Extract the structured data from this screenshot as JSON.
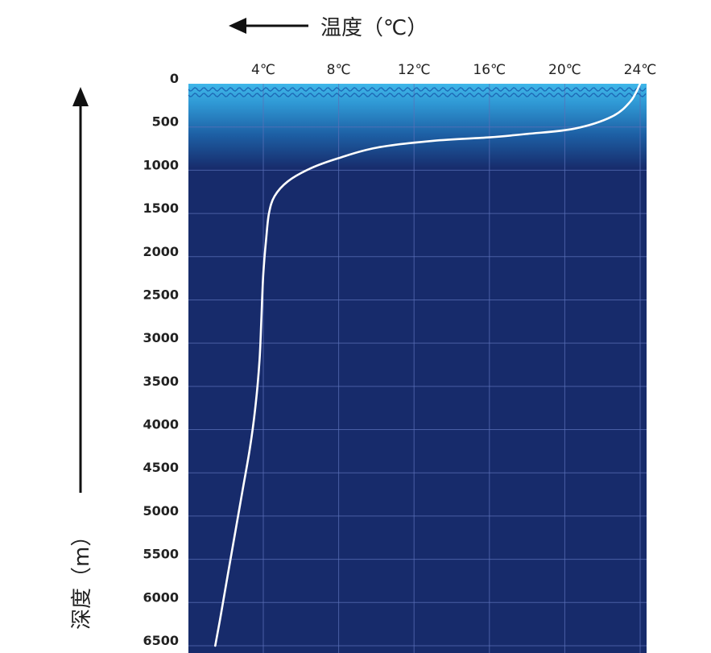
{
  "chart_data": {
    "type": "line",
    "xlabel": "温度（℃）",
    "ylabel": "深度（m）",
    "x_ticks": [
      "4℃",
      "8℃",
      "12℃",
      "16℃",
      "20℃",
      "24℃"
    ],
    "x_tick_values": [
      4,
      8,
      12,
      16,
      20,
      24
    ],
    "xlim": [
      0,
      24
    ],
    "y_ticks": [
      "0",
      "500",
      "1000",
      "1500",
      "2000",
      "2500",
      "3000",
      "3500",
      "4000",
      "4500",
      "5000",
      "5500",
      "6000",
      "6500"
    ],
    "y_tick_values": [
      0,
      500,
      1000,
      1500,
      2000,
      2500,
      3000,
      3500,
      4000,
      4500,
      5000,
      5500,
      6000,
      6500
    ],
    "ylim": [
      0,
      6500
    ],
    "y_inverted": true,
    "grid": true,
    "series": [
      {
        "points": [
          [
            24.0,
            0
          ],
          [
            23.5,
            200
          ],
          [
            22.5,
            380
          ],
          [
            20.5,
            520
          ],
          [
            18.0,
            580
          ],
          [
            16.0,
            620
          ],
          [
            13.0,
            660
          ],
          [
            10.0,
            740
          ],
          [
            8.0,
            860
          ],
          [
            6.5,
            980
          ],
          [
            5.3,
            1130
          ],
          [
            4.6,
            1300
          ],
          [
            4.3,
            1500
          ],
          [
            4.15,
            1800
          ],
          [
            4.0,
            2200
          ],
          [
            3.9,
            2700
          ],
          [
            3.8,
            3200
          ],
          [
            3.6,
            3700
          ],
          [
            3.3,
            4200
          ],
          [
            2.9,
            4700
          ],
          [
            2.5,
            5200
          ],
          [
            2.1,
            5700
          ],
          [
            1.7,
            6200
          ],
          [
            1.45,
            6500
          ]
        ]
      }
    ]
  },
  "colors": {
    "surface": "#3fb7e9",
    "deep": "#172b6b",
    "grid": "#5a70b8",
    "curve": "#ffffff",
    "text": "#222222"
  }
}
